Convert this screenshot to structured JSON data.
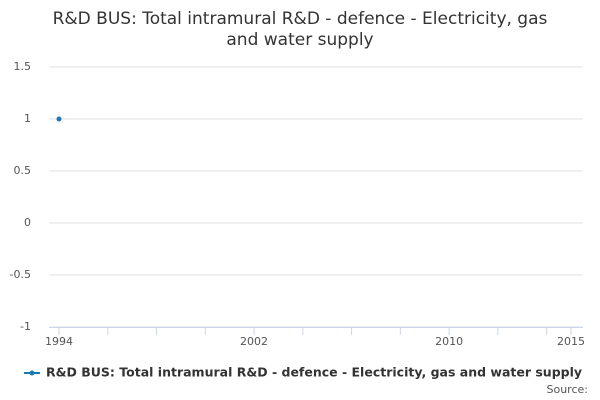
{
  "chart_data": {
    "type": "line",
    "title": "R&D BUS: Total intramural R&D - defence - Electricity, gas and water supply",
    "x": [
      1994
    ],
    "series": [
      {
        "name": "R&D BUS: Total intramural R&D - defence - Electricity, gas and water supply",
        "color": "#1a7ab5",
        "values": [
          1
        ]
      }
    ],
    "xlim": [
      1994,
      2015
    ],
    "xticks": [
      1994,
      2002,
      2010,
      2015
    ],
    "xminorticks": [
      1996,
      1998,
      2000,
      2004,
      2006,
      2008,
      2012,
      2014
    ],
    "ylim": [
      -1,
      1.5
    ],
    "yticks": [
      -1,
      -0.5,
      0,
      0.5,
      1,
      1.5
    ],
    "grid": true,
    "legend": "bottom",
    "source": "Source:"
  }
}
